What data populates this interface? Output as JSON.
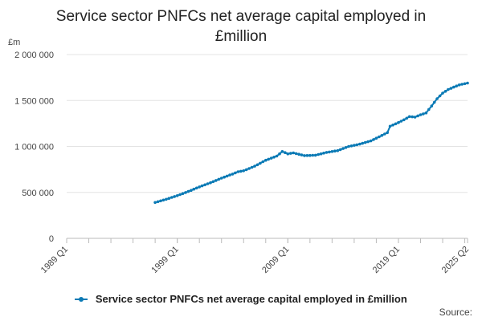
{
  "chart_data": {
    "type": "line",
    "title_lines": [
      "Service sector PNFCs net average capital employed in",
      "£million"
    ],
    "unit_label": "£m",
    "xlabel": "",
    "ylabel": "£m",
    "x_tick_labels": [
      "1989 Q1",
      "1999 Q1",
      "2009 Q1",
      "2019 Q1",
      "2025 Q2"
    ],
    "y_tick_labels": [
      "0",
      "500 000",
      "1 000 000",
      "1 500 000",
      "2 000 000"
    ],
    "ylim": [
      0,
      2000000
    ],
    "xlim": [
      "1989 Q1",
      "2025 Q2"
    ],
    "grid": "horizontal",
    "legend_position": "bottom",
    "series": [
      {
        "name": "Service sector PNFCs net average capital employed in £million",
        "color": "#0b7ab5",
        "marker": "circle",
        "points": [
          [
            "1997 Q1",
            390000
          ],
          [
            "1998 Q1",
            425000
          ],
          [
            "1999 Q1",
            465000
          ],
          [
            "2000 Q1",
            510000
          ],
          [
            "2001 Q1",
            560000
          ],
          [
            "2002 Q1",
            605000
          ],
          [
            "2003 Q1",
            655000
          ],
          [
            "2004 Q1",
            700000
          ],
          [
            "2004 Q3",
            725000
          ],
          [
            "2005 Q1",
            735000
          ],
          [
            "2006 Q1",
            785000
          ],
          [
            "2007 Q1",
            850000
          ],
          [
            "2008 Q1",
            895000
          ],
          [
            "2008 Q3",
            945000
          ],
          [
            "2009 Q1",
            920000
          ],
          [
            "2009 Q3",
            930000
          ],
          [
            "2010 Q3",
            900000
          ],
          [
            "2011 Q3",
            905000
          ],
          [
            "2012 Q3",
            935000
          ],
          [
            "2013 Q3",
            955000
          ],
          [
            "2014 Q3",
            1000000
          ],
          [
            "2015 Q3",
            1025000
          ],
          [
            "2016 Q3",
            1060000
          ],
          [
            "2017 Q3",
            1120000
          ],
          [
            "2018 Q1",
            1150000
          ],
          [
            "2018 Q2",
            1220000
          ],
          [
            "2019 Q1",
            1260000
          ],
          [
            "2019 Q3",
            1290000
          ],
          [
            "2020 Q1",
            1325000
          ],
          [
            "2020 Q3",
            1320000
          ],
          [
            "2021 Q1",
            1345000
          ],
          [
            "2021 Q3",
            1365000
          ],
          [
            "2022 Q1",
            1440000
          ],
          [
            "2022 Q3",
            1520000
          ],
          [
            "2023 Q1",
            1580000
          ],
          [
            "2023 Q3",
            1620000
          ],
          [
            "2024 Q1",
            1645000
          ],
          [
            "2024 Q3",
            1670000
          ],
          [
            "2025 Q2",
            1690000
          ]
        ]
      }
    ]
  },
  "legend": {
    "label": "Service sector PNFCs net average capital employed in £million"
  },
  "source_label": "Source:"
}
